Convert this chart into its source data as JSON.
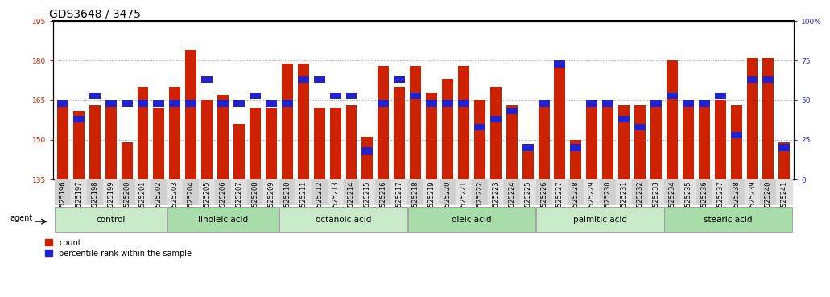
{
  "title": "GDS3648 / 3475",
  "samples": [
    "GSM525196",
    "GSM525197",
    "GSM525198",
    "GSM525199",
    "GSM525200",
    "GSM525201",
    "GSM525202",
    "GSM525203",
    "GSM525204",
    "GSM525205",
    "GSM525206",
    "GSM525207",
    "GSM525208",
    "GSM525209",
    "GSM525210",
    "GSM525211",
    "GSM525212",
    "GSM525213",
    "GSM525214",
    "GSM525215",
    "GSM525216",
    "GSM525217",
    "GSM525218",
    "GSM525219",
    "GSM525220",
    "GSM525221",
    "GSM525222",
    "GSM525223",
    "GSM525224",
    "GSM525225",
    "GSM525226",
    "GSM525227",
    "GSM525228",
    "GSM525229",
    "GSM525230",
    "GSM525231",
    "GSM525232",
    "GSM525233",
    "GSM525234",
    "GSM525235",
    "GSM525236",
    "GSM525237",
    "GSM525238",
    "GSM525239",
    "GSM525240",
    "GSM525241"
  ],
  "counts": [
    164,
    161,
    163,
    164,
    149,
    170,
    162,
    170,
    184,
    165,
    167,
    156,
    162,
    162,
    179,
    179,
    162,
    162,
    163,
    151,
    178,
    170,
    178,
    168,
    173,
    178,
    165,
    170,
    163,
    148,
    163,
    179,
    150,
    163,
    163,
    163,
    163,
    163,
    180,
    163,
    163,
    165,
    163,
    181,
    181,
    149
  ],
  "percentile_ranks": [
    50,
    40,
    55,
    50,
    50,
    50,
    50,
    50,
    50,
    65,
    50,
    50,
    55,
    50,
    50,
    65,
    65,
    55,
    55,
    20,
    50,
    65,
    55,
    50,
    50,
    50,
    35,
    40,
    45,
    22,
    50,
    75,
    22,
    50,
    50,
    40,
    35,
    50,
    55,
    50,
    50,
    55,
    30,
    65,
    65,
    22
  ],
  "groups": [
    {
      "label": "control",
      "start": 0,
      "end": 7,
      "color": "#c8eac8"
    },
    {
      "label": "linoleic acid",
      "start": 7,
      "end": 14,
      "color": "#a8dca8"
    },
    {
      "label": "octanoic acid",
      "start": 14,
      "end": 22,
      "color": "#c8eac8"
    },
    {
      "label": "oleic acid",
      "start": 22,
      "end": 30,
      "color": "#a8dca8"
    },
    {
      "label": "palmitic acid",
      "start": 30,
      "end": 38,
      "color": "#c8eac8"
    },
    {
      "label": "stearic acid",
      "start": 38,
      "end": 46,
      "color": "#a8dca8"
    }
  ],
  "ylim_left": [
    135,
    195
  ],
  "ylim_right": [
    0,
    100
  ],
  "yticks_left": [
    135,
    150,
    165,
    180,
    195
  ],
  "yticks_right": [
    0,
    25,
    50,
    75,
    100
  ],
  "bar_color": "#cc2200",
  "pct_color": "#2222cc",
  "bg_color": "#ffffff",
  "grid_color": "#000000",
  "tick_label_color_left": "#cc2200",
  "tick_label_color_right": "#2222cc",
  "bar_width": 0.7,
  "title_fontsize": 10,
  "tick_fontsize": 6.5,
  "label_fontsize": 8
}
